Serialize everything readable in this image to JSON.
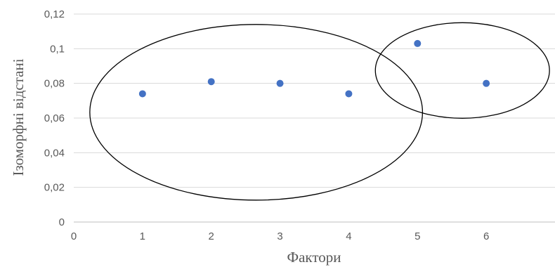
{
  "chart_data": {
    "type": "scatter",
    "title": "",
    "xlabel": "Фактори",
    "ylabel": "Ізоморфні відстані",
    "xlim": [
      0,
      7
    ],
    "ylim": [
      0,
      0.12
    ],
    "x_ticks": [
      "0",
      "1",
      "2",
      "3",
      "4",
      "5",
      "6"
    ],
    "y_ticks": [
      "0",
      "0,02",
      "0,04",
      "0,06",
      "0,08",
      "0,1",
      "0,12"
    ],
    "grid": true,
    "legend": "none",
    "series": [
      {
        "color": "#4472c4",
        "points": [
          {
            "x": 1,
            "y": 0.074
          },
          {
            "x": 2,
            "y": 0.081
          },
          {
            "x": 3,
            "y": 0.08
          },
          {
            "x": 4,
            "y": 0.074
          },
          {
            "x": 5,
            "y": 0.103
          },
          {
            "x": 6,
            "y": 0.08
          }
        ]
      }
    ],
    "annotations": [
      {
        "shape": "ellipse",
        "encloses_x": [
          1,
          2,
          3,
          4
        ]
      },
      {
        "shape": "ellipse",
        "encloses_x": [
          5,
          6
        ]
      }
    ]
  }
}
